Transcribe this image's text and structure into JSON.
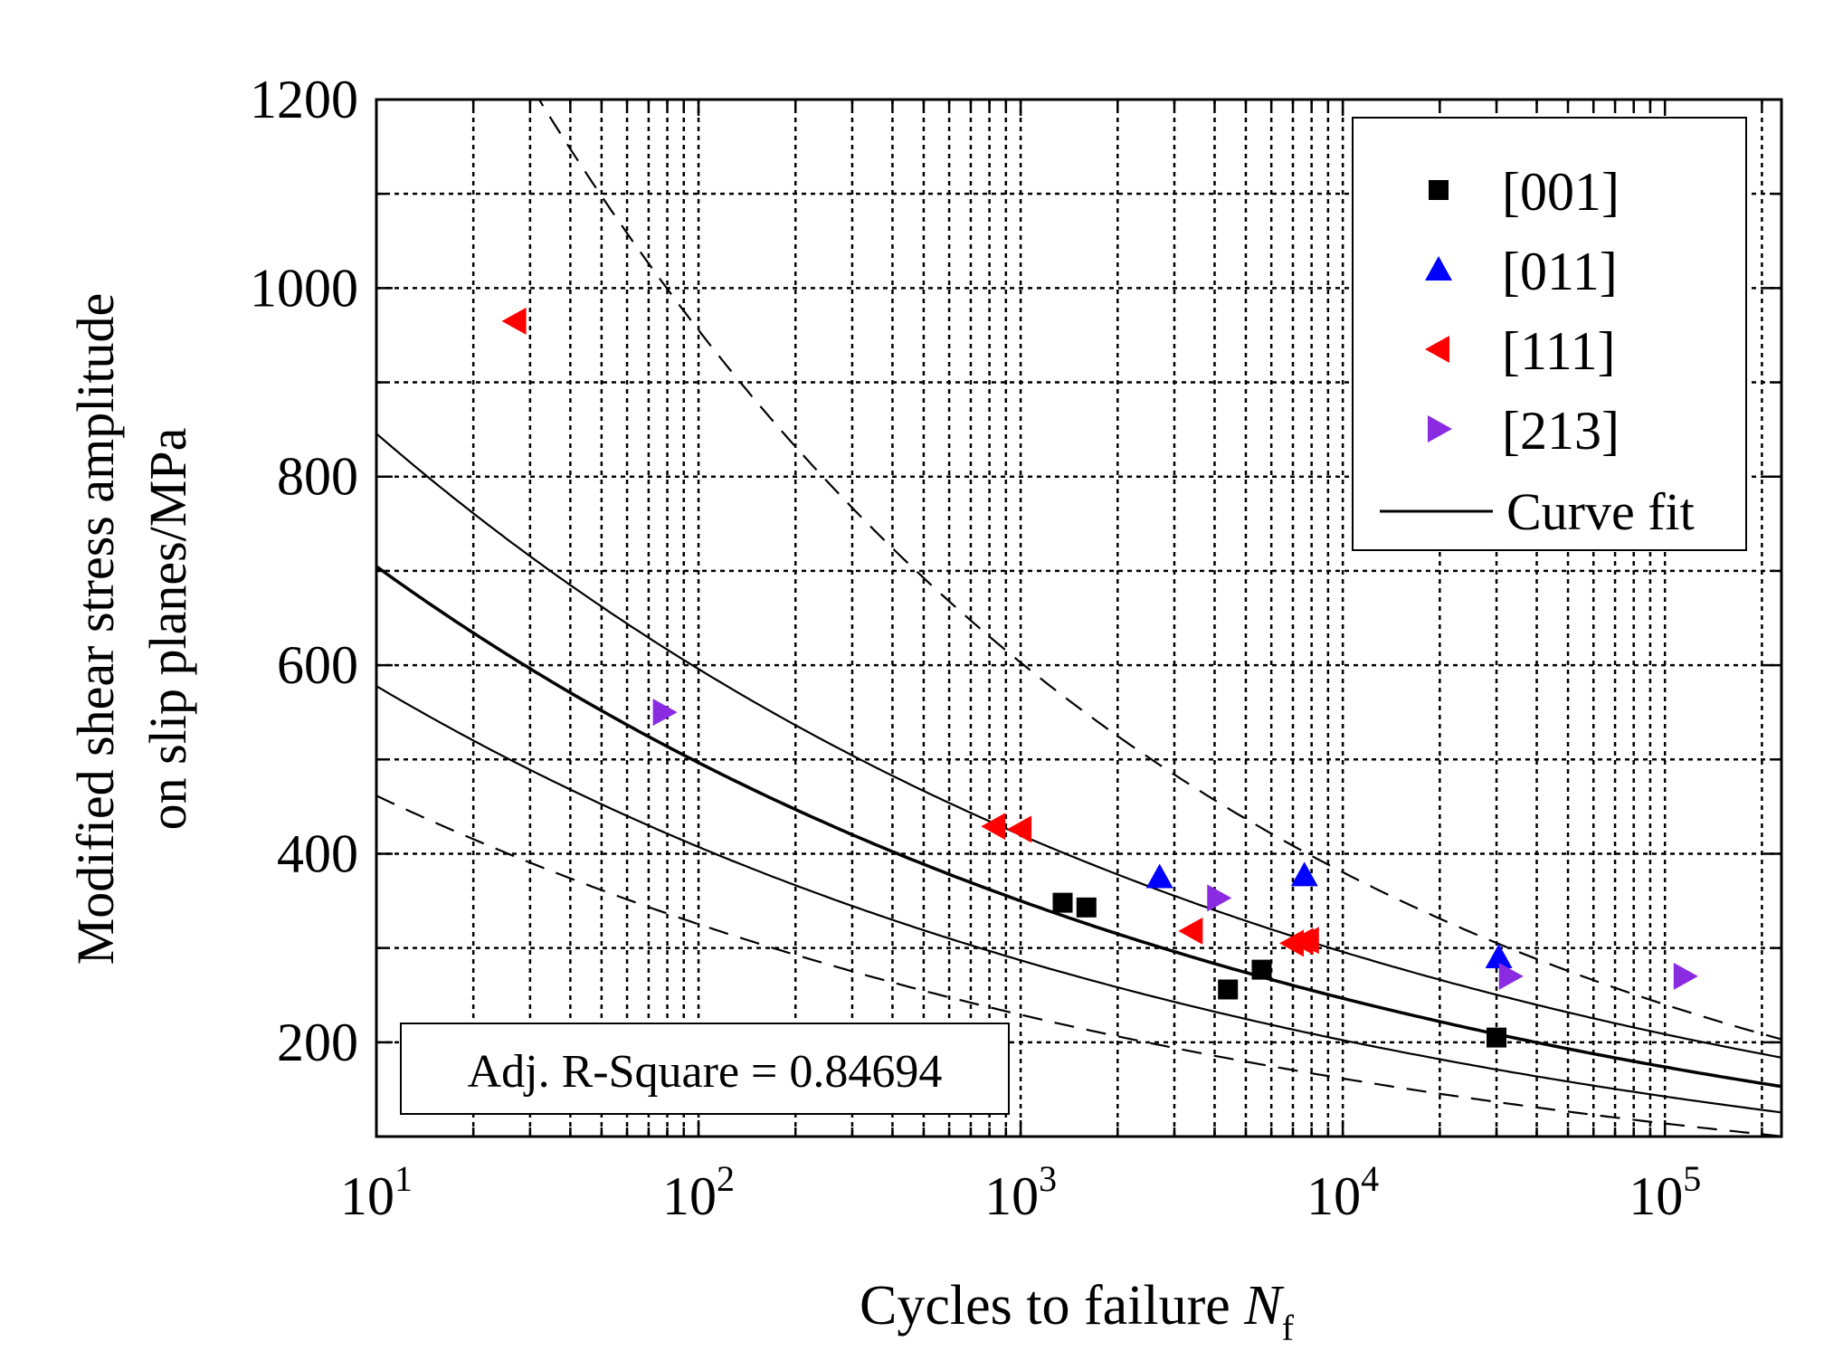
{
  "chart_data": {
    "type": "scatter",
    "title": "",
    "xlabel": "Cycles to failure",
    "xlabel_symbol": "N",
    "xlabel_subscript": "f",
    "ylabel_line1": "Modified shear stress amplitude",
    "ylabel_line2": "on slip planes/MPa",
    "x_scale": "log",
    "xlim": [
      10,
      230000
    ],
    "ylim": [
      100,
      1200
    ],
    "grid": true,
    "x_ticks": [
      {
        "value": 10,
        "base": "10",
        "exp": "1"
      },
      {
        "value": 100,
        "base": "10",
        "exp": "2"
      },
      {
        "value": 1000,
        "base": "10",
        "exp": "3"
      },
      {
        "value": 10000,
        "base": "10",
        "exp": "4"
      },
      {
        "value": 100000,
        "base": "10",
        "exp": "5"
      }
    ],
    "y_ticks": [
      200,
      400,
      600,
      800,
      1000,
      1200
    ],
    "legend_position": "top-right",
    "series": [
      {
        "name": "[001]",
        "marker": "square",
        "color": "#000000",
        "points": [
          [
            1350,
            348
          ],
          [
            1600,
            343
          ],
          [
            4400,
            256
          ],
          [
            5600,
            277
          ],
          [
            30000,
            205
          ]
        ]
      },
      {
        "name": "[011]",
        "marker": "triangle-up",
        "color": "#0000ff",
        "points": [
          [
            2700,
            375
          ],
          [
            7600,
            377
          ],
          [
            30500,
            290
          ]
        ]
      },
      {
        "name": "[111]",
        "marker": "triangle-left",
        "color": "#ff0000",
        "points": [
          [
            27,
            965
          ],
          [
            830,
            429
          ],
          [
            1000,
            426
          ],
          [
            3400,
            318
          ],
          [
            7000,
            305
          ],
          [
            7500,
            307
          ],
          [
            7800,
            308
          ]
        ]
      },
      {
        "name": "[213]",
        "marker": "triangle-right",
        "color": "#8a2be2",
        "points": [
          [
            78,
            550
          ],
          [
            4100,
            353
          ],
          [
            33000,
            270
          ],
          [
            115000,
            270
          ]
        ]
      }
    ],
    "fit_label": "Curve fit",
    "fit_curves": [
      {
        "role": "fit",
        "style": "solid",
        "a": 1000,
        "b": 0.152
      },
      {
        "role": "upper-band",
        "style": "solid",
        "a": 1200,
        "b": 0.152
      },
      {
        "role": "lower-band",
        "style": "solid",
        "a": 820,
        "b": 0.152
      },
      {
        "role": "upper-outer",
        "style": "dashed",
        "a": 2400,
        "b": 0.2
      },
      {
        "role": "lower-outer",
        "style": "dashed",
        "a": 655,
        "b": 0.152
      }
    ],
    "annotation": "Adj. R-Square = 0.84694"
  }
}
